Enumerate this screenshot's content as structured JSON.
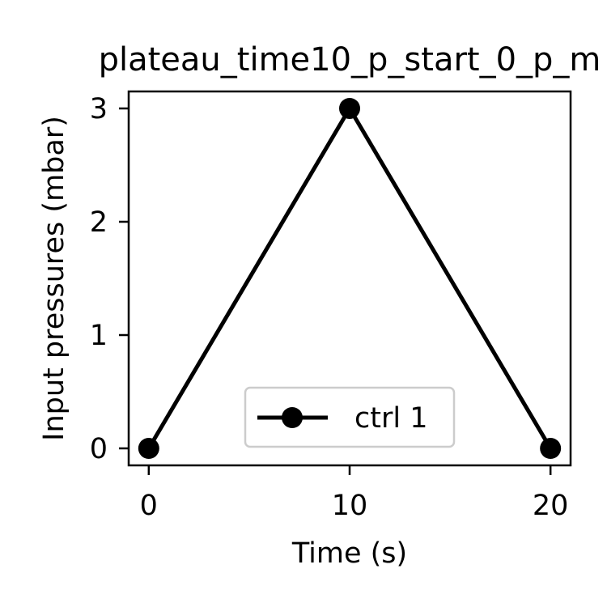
{
  "chart_data": {
    "type": "line",
    "title": "plateau_time10_p_start_0_p_m",
    "xlabel": "Time (s)",
    "ylabel": "Input pressures (mbar)",
    "xlim": [
      -1,
      21
    ],
    "ylim": [
      -0.15,
      3.15
    ],
    "x_ticks": [
      0,
      10,
      20
    ],
    "y_ticks": [
      0,
      1,
      2,
      3
    ],
    "x_tick_labels": [
      "0",
      "10",
      "20"
    ],
    "y_tick_labels": [
      "0",
      "1",
      "2",
      "3"
    ],
    "grid": false,
    "legend_position": "bottom-center",
    "series": [
      {
        "name": "ctrl 1",
        "color": "#000000",
        "marker": "circle",
        "x": [
          0,
          10,
          20
        ],
        "y": [
          0,
          3,
          0
        ]
      }
    ]
  }
}
